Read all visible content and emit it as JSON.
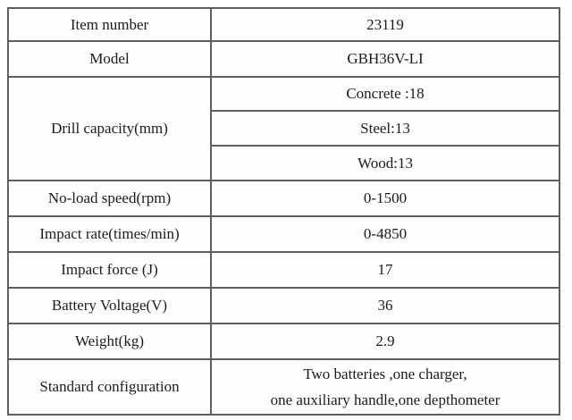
{
  "page": {
    "background": "#ffffff",
    "border_color": "#5f5f5f",
    "text_color": "#1b1b1b"
  },
  "table": {
    "rows": [
      {
        "label": "Item number",
        "value": "23119"
      },
      {
        "label": "Model",
        "value": "GBH36V-LI"
      },
      {
        "label": "Drill capacity(mm)",
        "values": [
          "Concrete :18",
          "Steel:13",
          "Wood:13"
        ]
      },
      {
        "label": "No-load speed(rpm)",
        "value": "0-1500"
      },
      {
        "label": "Impact rate(times/min)",
        "value": "0-4850"
      },
      {
        "label": "Impact force (J)",
        "value": "17"
      },
      {
        "label": "Battery Voltage(V)",
        "value": "36"
      },
      {
        "label": "Weight(kg)",
        "value": "2.9"
      },
      {
        "label": "Standard configuration",
        "value_lines": [
          "Two batteries ,one charger,",
          "one auxiliary handle,one depthometer"
        ]
      }
    ]
  }
}
